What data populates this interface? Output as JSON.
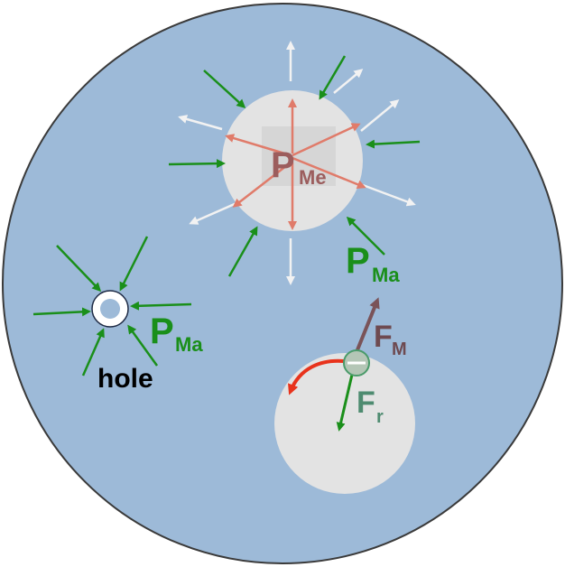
{
  "colors": {
    "background_disk": "#9dbad8",
    "disk_edge": "#3a3a3a",
    "light_circle": "#e3e3e3",
    "green": "#1a8f1a",
    "salmon": "#e07b6a",
    "white_arrow": "#f2f2f2",
    "brown": "#7a5358",
    "red_arrow": "#e8331c",
    "hole_fill": "#9dbad8",
    "label_me_color": "#9c5d5d",
    "label_ma_color": "#1a8f1a",
    "label_fm_color": "#6e4a50",
    "label_fr_color": "#4e8b70"
  },
  "labels": {
    "p_me_main": "P",
    "p_me_sub": "Me",
    "p_ma_right_main": "P",
    "p_ma_right_sub": "Ma",
    "p_ma_left_main": "P",
    "p_ma_left_sub": "Ma",
    "hole": "hole",
    "f_m_main": "F",
    "f_m_sub": "M",
    "f_r_main": "F",
    "f_r_sub": "r"
  },
  "icons": {
    "minus_sign": "minus-in-circle"
  }
}
